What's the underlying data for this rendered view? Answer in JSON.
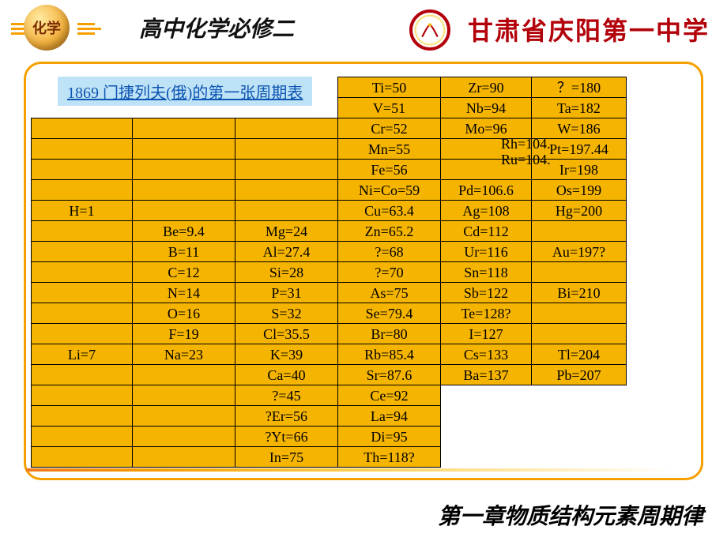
{
  "header": {
    "badge_text": "化学",
    "title": "高中化学必修二",
    "school": "甘肃省庆阳第一中学"
  },
  "caption": "1869 门捷列夫(俄)的第一张周期表",
  "overlay": {
    "rh": "Rh=104.",
    "ru": "Ru=104."
  },
  "columnWidths": [
    "c0",
    "c1",
    "c2",
    "c3",
    "c4",
    "c5"
  ],
  "rows": [
    {
      "cells": [
        "",
        "",
        "",
        "Ti=50",
        "Zr=90",
        "？=180"
      ],
      "firstThreeBlank": true
    },
    {
      "cells": [
        "",
        "",
        "",
        "V=51",
        "Nb=94",
        "Ta=182"
      ],
      "firstThreeBlank": true
    },
    {
      "cells": [
        "",
        "",
        "",
        "Cr=52",
        "Mo=96",
        "W=186"
      ]
    },
    {
      "cells": [
        "",
        "",
        "",
        "Mn=55",
        "",
        "Pt=197.44"
      ]
    },
    {
      "cells": [
        "",
        "",
        "",
        "Fe=56",
        "",
        "Ir=198"
      ]
    },
    {
      "cells": [
        "",
        "",
        "",
        "Ni=Co=59",
        "Pd=106.6",
        "Os=199"
      ]
    },
    {
      "cells": [
        "H=1",
        "",
        "",
        "Cu=63.4",
        "Ag=108",
        "Hg=200"
      ]
    },
    {
      "cells": [
        "",
        "Be=9.4",
        "Mg=24",
        "Zn=65.2",
        "Cd=112",
        ""
      ]
    },
    {
      "cells": [
        "",
        "B=11",
        "Al=27.4",
        "?=68",
        "Ur=116",
        "Au=197?"
      ]
    },
    {
      "cells": [
        "",
        "C=12",
        "Si=28",
        "?=70",
        "Sn=118",
        ""
      ]
    },
    {
      "cells": [
        "",
        "N=14",
        "P=31",
        "As=75",
        "Sb=122",
        "Bi=210"
      ]
    },
    {
      "cells": [
        "",
        "O=16",
        "S=32",
        "Se=79.4",
        "Te=128?",
        ""
      ]
    },
    {
      "cells": [
        "",
        "F=19",
        "Cl=35.5",
        "Br=80",
        "I=127",
        ""
      ]
    },
    {
      "cells": [
        "Li=7",
        "Na=23",
        "K=39",
        "Rb=85.4",
        "Cs=133",
        "Tl=204"
      ]
    },
    {
      "cells": [
        "",
        "",
        "Ca=40",
        "Sr=87.6",
        "Ba=137",
        "Pb=207"
      ]
    },
    {
      "cells": [
        "",
        "",
        "?=45",
        "Ce=92",
        "",
        ""
      ],
      "lastTwoBlank": true
    },
    {
      "cells": [
        "",
        "",
        "?Er=56",
        "La=94",
        "",
        ""
      ],
      "lastTwoBlank": true
    },
    {
      "cells": [
        "",
        "",
        "?Yt=66",
        "Di=95",
        "",
        ""
      ],
      "lastTwoBlank": true
    },
    {
      "cells": [
        "",
        "",
        "In=75",
        "Th=118?",
        "",
        ""
      ],
      "lastTwoBlank": true
    }
  ],
  "footer": "第一章物质结构元素周期律",
  "colors": {
    "cell_bg": "#f5b400",
    "frame_border": "#f5a000",
    "school_red": "#b3010a",
    "caption_bg": "#bfe3f6",
    "caption_text": "#0d55b3"
  }
}
